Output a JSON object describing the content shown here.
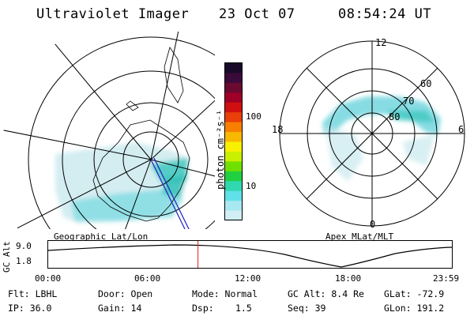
{
  "header": {
    "instrument": "Ultraviolet Imager",
    "date": "23 Oct 07",
    "time": "08:54:24 UT"
  },
  "left_panel": {
    "caption": "Geographic Lat/Lon"
  },
  "right_panel": {
    "caption": "Apex MLat/MLT",
    "mlt_labels": [
      "12",
      "18",
      "6",
      "0"
    ],
    "mlat_labels": [
      "60",
      "70",
      "80"
    ]
  },
  "colorbar": {
    "unit_label": "photon cm⁻²s⁻¹",
    "tick_labels": [
      "100",
      "10"
    ],
    "colors": [
      "#1a0a2a",
      "#3a0a3a",
      "#6a0a30",
      "#a00028",
      "#d01010",
      "#e84008",
      "#f88000",
      "#f8b800",
      "#f8f000",
      "#c8f000",
      "#70e000",
      "#20d040",
      "#30d8b0",
      "#60e0e8",
      "#a8e8f0",
      "#d0eef4"
    ]
  },
  "altitude_plot": {
    "ylabel": "GC Alt",
    "y_ticks": [
      "9.0",
      "1.8"
    ],
    "x_ticks": [
      "00:00",
      "06:00",
      "12:00",
      "18:00",
      "23:59"
    ],
    "current_time_fraction": 0.371
  },
  "info": {
    "flt": "Flt: LBHL",
    "ip": "IP: 36.0",
    "door": "Door: Open",
    "gain": "Gain: 14",
    "mode": "Mode: Normal",
    "dsp_label": "Dsp:",
    "dsp_value": "1.5",
    "gc_alt": "GC Alt: 8.4 Re",
    "seq": "Seq: 39",
    "glat": "GLat: -72.9",
    "glon": "GLon: 191.2"
  },
  "colors": {
    "aurora_light": "#b0e0ec",
    "aurora_mid": "#7ad8e0",
    "aurora_dark": "#40c8c0",
    "marker": "#e02020",
    "meridian": "#2020c0"
  }
}
